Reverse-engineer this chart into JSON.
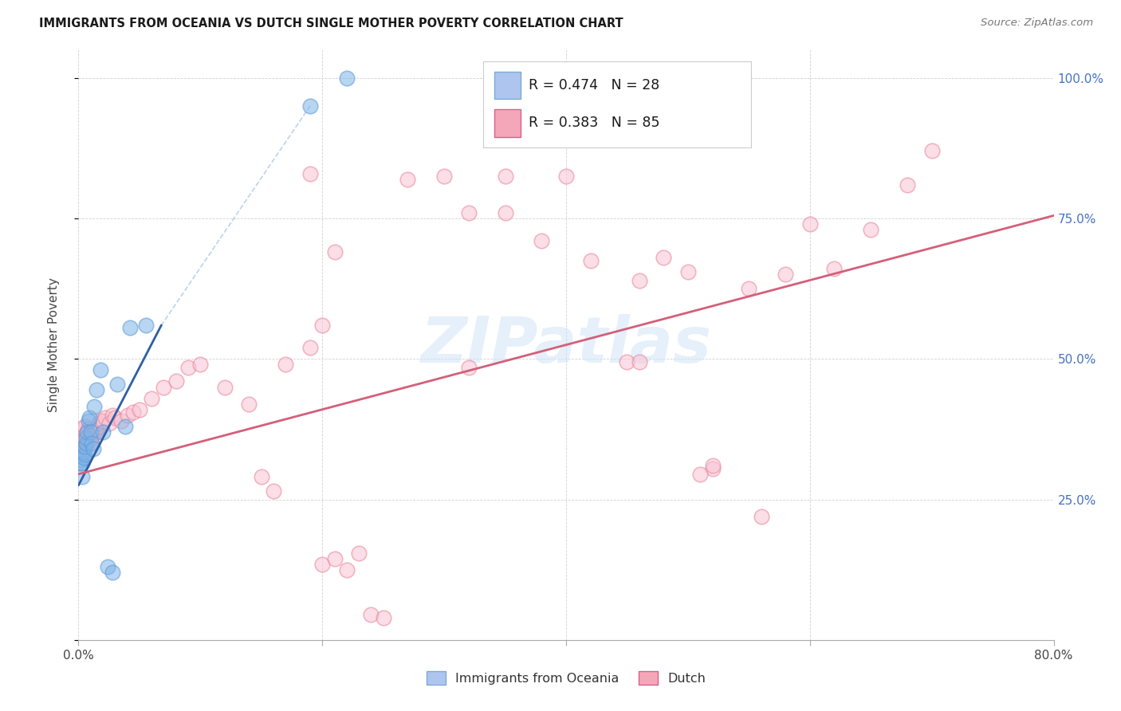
{
  "title": "IMMIGRANTS FROM OCEANIA VS DUTCH SINGLE MOTHER POVERTY CORRELATION CHART",
  "source": "Source: ZipAtlas.com",
  "ylabel": "Single Mother Poverty",
  "x_min": 0.0,
  "x_max": 0.8,
  "y_min": 0.0,
  "y_max": 1.05,
  "watermark_text": "ZIPatlas",
  "blue_r": "0.474",
  "blue_n": "28",
  "pink_r": "0.383",
  "pink_n": "85",
  "background_color": "#ffffff",
  "grid_color": "#cccccc",
  "blue_dot_color": "#7fb3e8",
  "blue_dot_edge": "#5b9bd5",
  "pink_dot_color": "#f8c4d4",
  "pink_dot_edge": "#e8859a",
  "blue_line_color": "#2e5fa3",
  "pink_line_color": "#d45f7a",
  "dashed_line_color": "#aac8e8",
  "scatter_size": 180,
  "scatter_alpha": 0.55,
  "blue_scatter_x": [
    0.001,
    0.002,
    0.003,
    0.003,
    0.004,
    0.004,
    0.005,
    0.005,
    0.006,
    0.006,
    0.007,
    0.008,
    0.009,
    0.01,
    0.011,
    0.012,
    0.013,
    0.015,
    0.018,
    0.02,
    0.024,
    0.028,
    0.032,
    0.038,
    0.042,
    0.055,
    0.19,
    0.22
  ],
  "blue_scatter_y": [
    0.315,
    0.32,
    0.29,
    0.315,
    0.325,
    0.335,
    0.33,
    0.345,
    0.35,
    0.36,
    0.37,
    0.39,
    0.395,
    0.37,
    0.35,
    0.34,
    0.415,
    0.445,
    0.48,
    0.37,
    0.13,
    0.12,
    0.455,
    0.38,
    0.555,
    0.56,
    0.95,
    1.0
  ],
  "pink_scatter_x": [
    0.001,
    0.001,
    0.002,
    0.002,
    0.002,
    0.003,
    0.003,
    0.003,
    0.004,
    0.004,
    0.005,
    0.005,
    0.005,
    0.006,
    0.006,
    0.007,
    0.007,
    0.008,
    0.008,
    0.009,
    0.009,
    0.01,
    0.01,
    0.011,
    0.012,
    0.013,
    0.014,
    0.015,
    0.016,
    0.017,
    0.018,
    0.02,
    0.022,
    0.025,
    0.028,
    0.03,
    0.035,
    0.04,
    0.045,
    0.05,
    0.06,
    0.07,
    0.08,
    0.09,
    0.1,
    0.12,
    0.14,
    0.15,
    0.16,
    0.17,
    0.19,
    0.2,
    0.21,
    0.22,
    0.23,
    0.24,
    0.25,
    0.27,
    0.3,
    0.32,
    0.35,
    0.38,
    0.4,
    0.42,
    0.45,
    0.48,
    0.5,
    0.52,
    0.55,
    0.58,
    0.6,
    0.62,
    0.65,
    0.68,
    0.7,
    0.2,
    0.21,
    0.19,
    0.35,
    0.32,
    0.46,
    0.46,
    0.51,
    0.52,
    0.56
  ],
  "pink_scatter_y": [
    0.34,
    0.36,
    0.33,
    0.35,
    0.37,
    0.34,
    0.36,
    0.375,
    0.335,
    0.355,
    0.34,
    0.36,
    0.38,
    0.345,
    0.365,
    0.35,
    0.37,
    0.355,
    0.375,
    0.355,
    0.37,
    0.35,
    0.365,
    0.37,
    0.365,
    0.375,
    0.37,
    0.375,
    0.38,
    0.385,
    0.39,
    0.39,
    0.395,
    0.385,
    0.4,
    0.395,
    0.39,
    0.4,
    0.405,
    0.41,
    0.43,
    0.45,
    0.46,
    0.485,
    0.49,
    0.45,
    0.42,
    0.29,
    0.265,
    0.49,
    0.52,
    0.135,
    0.145,
    0.125,
    0.155,
    0.045,
    0.04,
    0.82,
    0.825,
    0.485,
    0.825,
    0.71,
    0.825,
    0.675,
    0.495,
    0.68,
    0.655,
    0.305,
    0.625,
    0.65,
    0.74,
    0.66,
    0.73,
    0.81,
    0.87,
    0.56,
    0.69,
    0.83,
    0.76,
    0.76,
    0.495,
    0.64,
    0.295,
    0.31,
    0.22
  ],
  "blue_line_x": [
    0.0,
    0.068
  ],
  "blue_line_y": [
    0.275,
    0.56
  ],
  "pink_line_x": [
    0.0,
    0.8
  ],
  "pink_line_y": [
    0.295,
    0.755
  ],
  "dashed_line_x": [
    0.19,
    0.068
  ],
  "dashed_line_y": [
    0.95,
    0.56
  ]
}
